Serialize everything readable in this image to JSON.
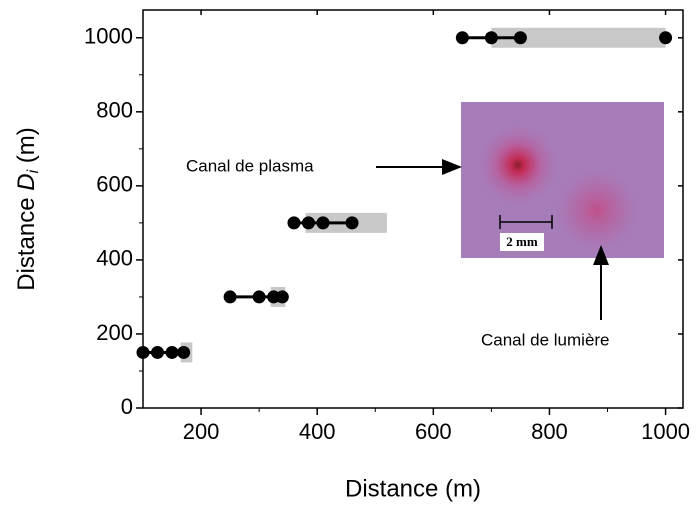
{
  "chart_data": {
    "type": "scatter",
    "xlabel": "Distance (m)",
    "ylabel_parts": [
      "Distance",
      "D",
      "i",
      "(m)"
    ],
    "xlim": [
      100,
      1030
    ],
    "xticks": [
      200,
      400,
      600,
      800,
      1000
    ],
    "ylim": [
      0,
      1075
    ],
    "yticks": [
      0,
      200,
      400,
      600,
      800,
      1000
    ],
    "color": "#000000",
    "range_color": "#c8c8c8",
    "series": [
      {
        "x": [
          100,
          125,
          150,
          170
        ],
        "y": [
          150,
          150,
          150,
          150
        ]
      },
      {
        "x": [
          250,
          300,
          325,
          340
        ],
        "y": [
          300,
          300,
          300,
          300
        ]
      },
      {
        "x": [
          360,
          385,
          410,
          460
        ],
        "y": [
          500,
          500,
          500,
          500
        ]
      },
      {
        "x": [
          650,
          700,
          750
        ],
        "y": [
          1000,
          1000,
          1000
        ]
      },
      {
        "x": [
          1000
        ],
        "y": [
          1000
        ]
      }
    ],
    "ranges": [
      {
        "y": 150,
        "x0": 165,
        "x1": 185
      },
      {
        "y": 300,
        "x0": 320,
        "x1": 345
      },
      {
        "y": 500,
        "x0": 380,
        "x1": 520
      },
      {
        "y": 1000,
        "x0": 700,
        "x1": 1000
      }
    ],
    "inset": {
      "label_plasma": "Canal de plasma",
      "label_light": "Canal de lumière",
      "scale": "2 mm"
    }
  }
}
